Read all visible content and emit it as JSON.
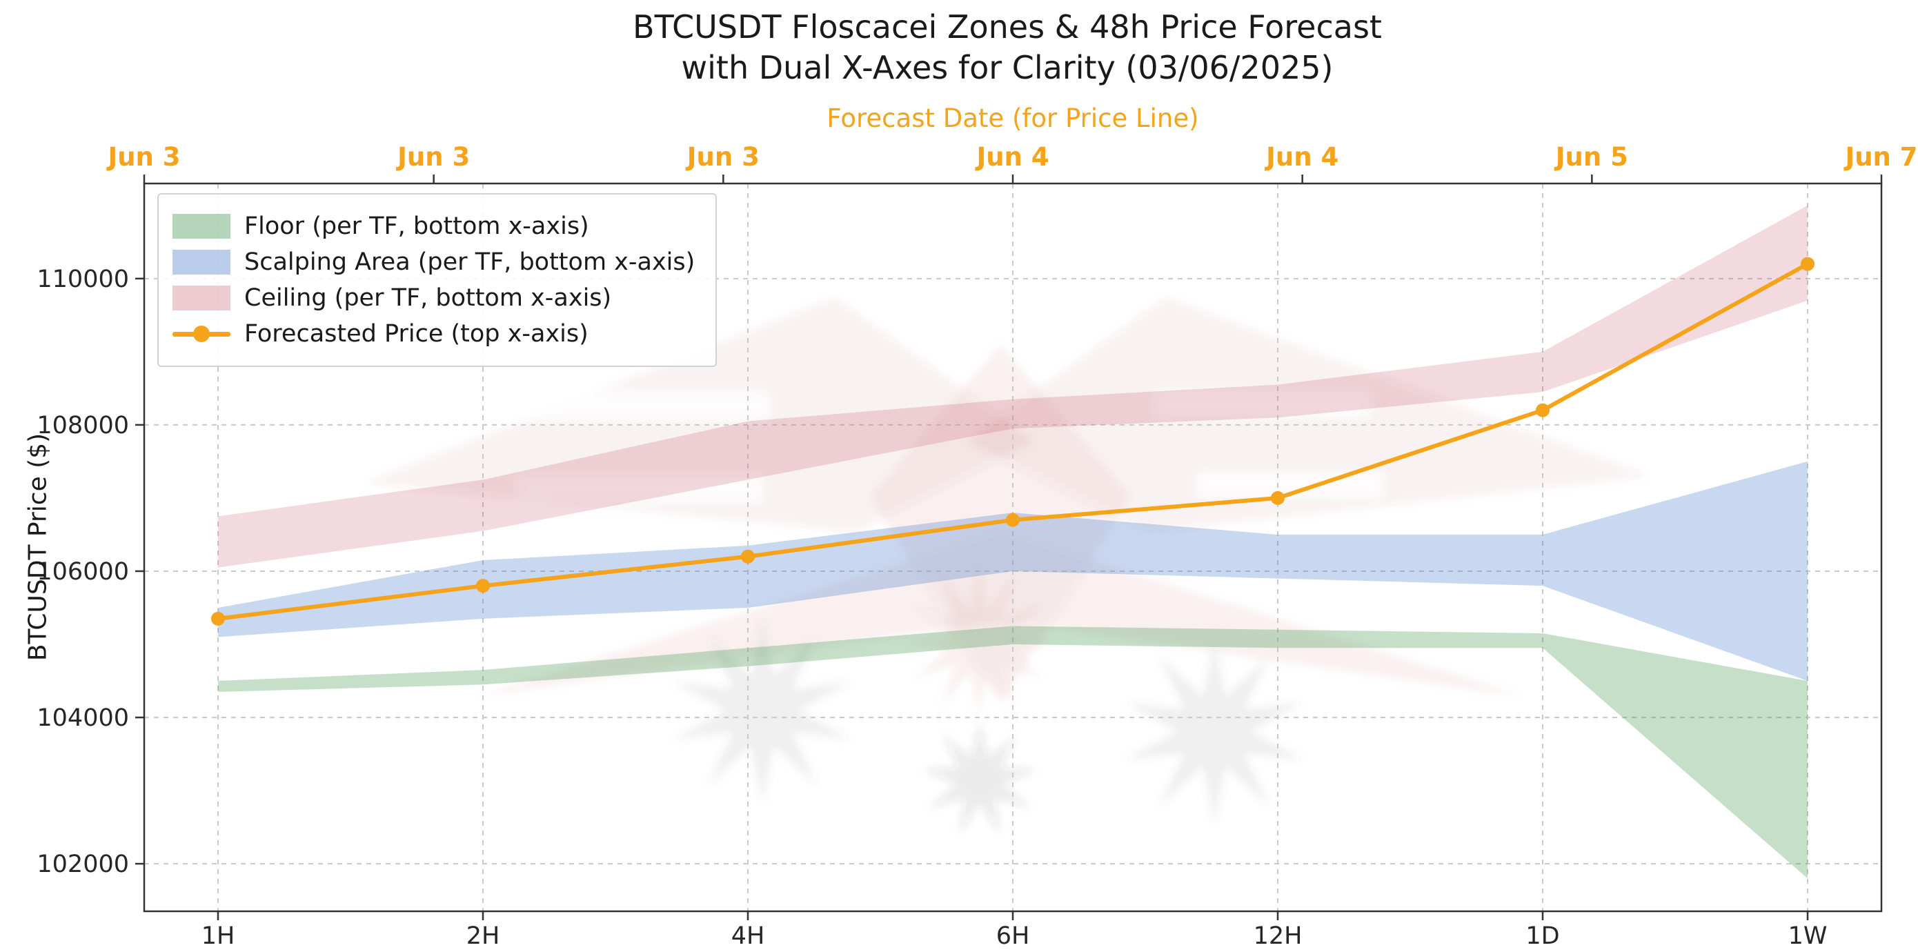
{
  "title": {
    "line1": "BTCUSDT Floscacei Zones & 48h Price Forecast",
    "line2": "with Dual X-Axes for Clarity (03/06/2025)"
  },
  "chart_data": {
    "type": "area",
    "title": "BTCUSDT Floscacei Zones & 48h Price Forecast with Dual X-Axes for Clarity (03/06/2025)",
    "top_axis_label": "Forecast Date (for Price Line)",
    "ylabel": "BTCUSDT Price ($)",
    "categories": [
      "1H",
      "2H",
      "4H",
      "6H",
      "12H",
      "1D",
      "1W"
    ],
    "top_axis_ticks": [
      "Jun 3",
      "Jun 3",
      "Jun 3",
      "Jun 4",
      "Jun 4",
      "Jun 5",
      "Jun 7"
    ],
    "y_ticks": [
      102000,
      104000,
      106000,
      108000,
      110000
    ],
    "ylim": [
      101350,
      111300
    ],
    "grid": true,
    "legend_position": "upper left",
    "colors": {
      "floor": "#2e8b3d",
      "scalping": "#4a7fcc",
      "ceiling": "#c0485a",
      "forecast": "#f5a31a",
      "grid": "#c9c9c9",
      "spine": "#333333"
    },
    "bands": [
      {
        "name": "Floor (per TF, bottom x-axis)",
        "color": "#2e8b3d",
        "opacity": 0.28,
        "lower": [
          104350,
          104450,
          104700,
          105000,
          104950,
          104950,
          101800
        ],
        "upper": [
          104500,
          104650,
          104950,
          105250,
          105200,
          105150,
          104500
        ]
      },
      {
        "name": "Scalping Area (per TF, bottom x-axis)",
        "color": "#4a7fcc",
        "opacity": 0.3,
        "lower": [
          105100,
          105350,
          105500,
          106000,
          105900,
          105800,
          104500
        ],
        "upper": [
          105500,
          106150,
          106350,
          106800,
          106500,
          106500,
          107500
        ]
      },
      {
        "name": "Ceiling (per TF, bottom x-axis)",
        "color": "#c0485a",
        "opacity": 0.2,
        "lower": [
          106050,
          106550,
          107250,
          107950,
          108100,
          108450,
          109700
        ],
        "upper": [
          106750,
          107250,
          108050,
          108350,
          108550,
          109000,
          111000
        ]
      }
    ],
    "line": {
      "name": "Forecasted Price (top x-axis)",
      "color": "#f5a31a",
      "values": [
        105350,
        105800,
        106200,
        106700,
        107000,
        108200,
        110200
      ]
    }
  },
  "legend": {
    "items": [
      {
        "label": "Floor (per TF, bottom x-axis)"
      },
      {
        "label": "Scalping Area (per TF, bottom x-axis)"
      },
      {
        "label": "Ceiling (per TF, bottom x-axis)"
      },
      {
        "label": "Forecasted Price (top x-axis)"
      }
    ]
  }
}
